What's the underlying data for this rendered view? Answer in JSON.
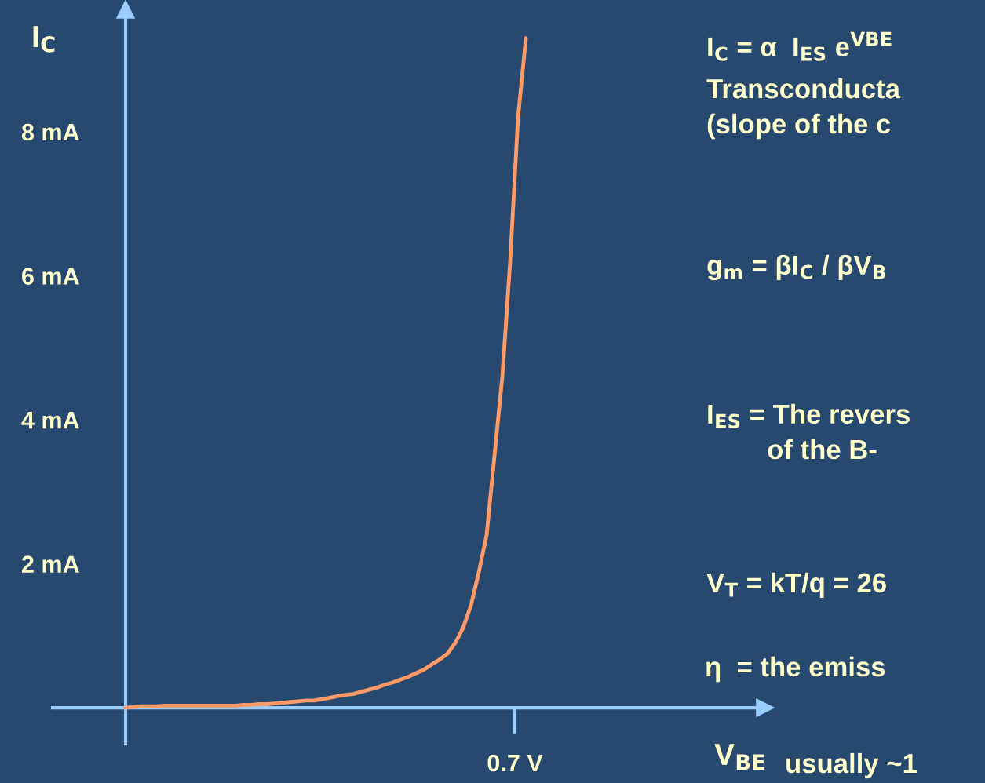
{
  "chart_data": {
    "type": "line",
    "ylabel": "I$_{C}$",
    "categories": [
      null,
      null,
      null,
      null,
      null,
      null,
      null,
      null,
      null,
      null,
      null,
      null,
      null,
      null,
      null,
      null,
      null,
      null,
      null,
      null,
      null,
      null,
      null,
      null,
      null,
      null,
      null,
      null,
      null,
      null,
      null,
      null,
      null,
      null,
      null,
      null,
      null,
      null,
      null,
      null,
      null,
      null,
      null,
      null,
      null,
      null,
      null,
      null,
      null,
      null,
      null,
      null
    ],
    "series": [
      {
        "color": "#ff9966",
        "values": [
          0,
          0.01,
          0.02,
          0.02,
          0.02,
          0.03,
          0.03,
          0.03,
          0.03,
          0.03,
          0.03,
          0.03,
          0.03,
          0.03,
          0.03,
          0.04,
          0.04,
          0.05,
          0.05,
          0.06,
          0.07,
          0.08,
          0.09,
          0.1,
          0.1,
          0.12,
          0.14,
          0.16,
          0.18,
          0.19,
          0.22,
          0.25,
          0.28,
          0.32,
          0.35,
          0.39,
          0.43,
          0.48,
          0.53,
          0.6,
          0.67,
          0.75,
          0.9,
          1.11,
          1.42,
          1.88,
          2.4,
          3.5,
          4.6,
          6.2,
          8.2,
          9.3
        ]
      }
    ],
    "ylim": [
      -0.5,
      9.7
    ],
    "yticks": [
      {
        "value": 2,
        "label": "2 mA"
      },
      {
        "value": 4,
        "label": "4 mA"
      },
      {
        "value": 6,
        "label": "6 mA"
      },
      {
        "value": 8,
        "label": "8 mA"
      }
    ],
    "ref_lines": [
      {
        "axis": "y",
        "value": 0,
        "color": "#99ccff",
        "line_style": "solid"
      }
    ],
    "grid": false,
    "legend": false,
    "marker": "none",
    "line_style": "solid",
    "annotations": [
      "I$_{C}$ = α  I$_{ES}$ e$^{VBE}$",
      "Transconducta\n(slope of the c",
      "g$_{m}$ = βI$_{C}$ / βV$_{B}$",
      "I$_{ES}$ = The revers\n        of the B-",
      "V$_{T}$ = kT/q = 26",
      "η  = the emiss",
      "usually ~1",
      "0.7 V",
      "V$_{BE}$"
    ]
  }
}
